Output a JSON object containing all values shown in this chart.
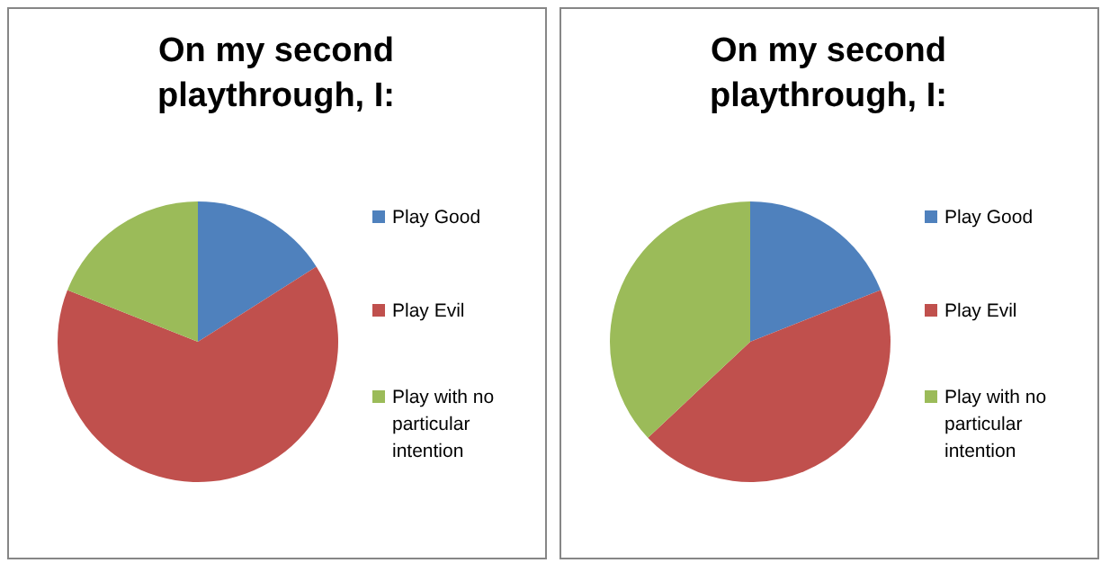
{
  "chart_data": [
    {
      "type": "pie",
      "title": "On my second playthrough, I:",
      "categories": [
        "Play Good",
        "Play Evil",
        "Play with no particular intention"
      ],
      "values": [
        16,
        65,
        19
      ],
      "colors": [
        "#4f81bd",
        "#c0504d",
        "#9bbb59"
      ],
      "legend": "right"
    },
    {
      "type": "pie",
      "title": "On my second playthrough, I:",
      "categories": [
        "Play Good",
        "Play Evil",
        "Play with no particular intention"
      ],
      "values": [
        19,
        44,
        37
      ],
      "colors": [
        "#4f81bd",
        "#c0504d",
        "#9bbb59"
      ],
      "legend": "right"
    }
  ]
}
